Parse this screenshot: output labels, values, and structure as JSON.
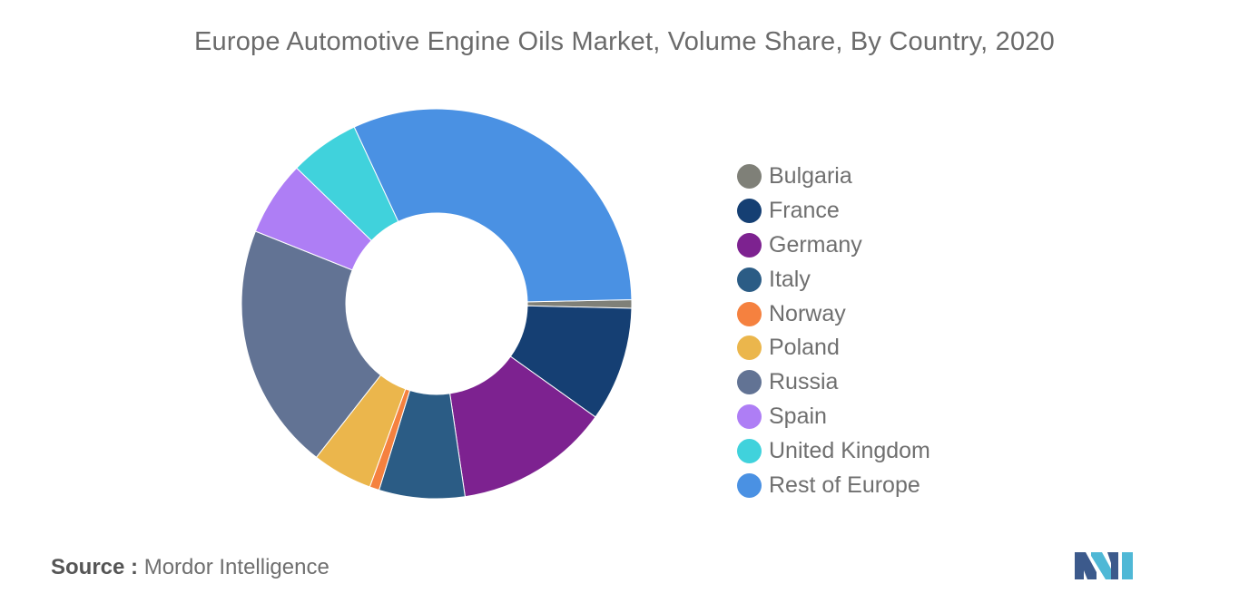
{
  "chart_data": {
    "type": "pie",
    "title": "Europe Automotive Engine Oils Market, Volume Share, By Country, 2020",
    "donut": true,
    "legend_position": "right",
    "categories": [
      "Bulgaria",
      "France",
      "Germany",
      "Italy",
      "Norway",
      "Poland",
      "Russia",
      "Spain",
      "United Kingdom",
      "Rest of Europe"
    ],
    "values": [
      0.7,
      9.5,
      12.8,
      7.1,
      0.8,
      5.0,
      20.5,
      6.2,
      5.8,
      31.6
    ],
    "colors": [
      "#7f8078",
      "#153f73",
      "#7d2290",
      "#2b5c85",
      "#f5813f",
      "#ebb64c",
      "#627394",
      "#ae7ef5",
      "#40d2dc",
      "#4a91e3"
    ]
  },
  "source": {
    "label": "Source :",
    "text": "Mordor Intelligence"
  },
  "logo": {
    "icon": "mordor-intelligence-logo",
    "colors": [
      "#3c5a8c",
      "#4fb8d6"
    ]
  }
}
